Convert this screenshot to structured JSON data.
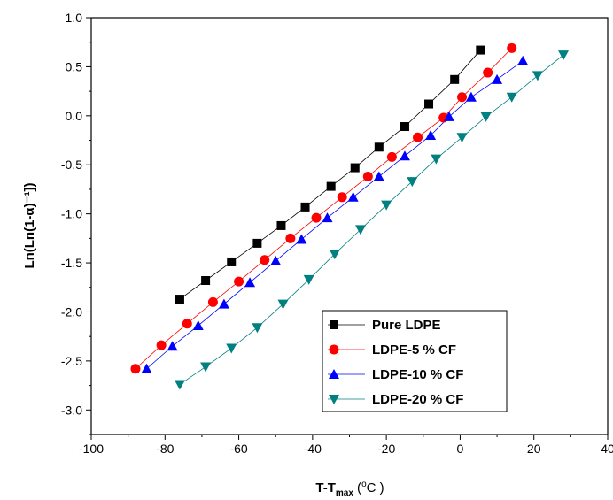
{
  "chart_data": {
    "type": "scatter",
    "xlabel": {
      "main": "T-T",
      "sub": "max",
      "unit_prefix": " (",
      "unit_deg": "o",
      "unit": "C )"
    },
    "ylabel": "Ln(Ln(1-α)⁻¹])",
    "xlim": [
      -100,
      40
    ],
    "ylim": [
      -3.25,
      1.0
    ],
    "xticks": [
      -100,
      -80,
      -60,
      -40,
      -20,
      0,
      20,
      40
    ],
    "yticks": [
      -3.0,
      -2.5,
      -2.0,
      -1.5,
      -1.0,
      -0.5,
      0.0,
      0.5,
      1.0
    ],
    "xtick_labels": [
      "-100",
      "-80",
      "-60",
      "-40",
      "-20",
      "0",
      "20",
      "40"
    ],
    "ytick_labels": [
      "-3.0",
      "-2.5",
      "-2.0",
      "-1.5",
      "-1.0",
      "-0.5",
      "0.0",
      "0.5",
      "1.0"
    ],
    "grid": false,
    "legend_position": "bottom-right",
    "series": [
      {
        "name": "Pure LDPE",
        "marker": "square",
        "color": "#000000",
        "line_color": "#000000",
        "x": [
          -76,
          -69,
          -62,
          -55,
          -48.5,
          -42,
          -35,
          -28.5,
          -22,
          -15,
          -8.5,
          -1.5,
          5.5
        ],
        "y": [
          -1.87,
          -1.68,
          -1.49,
          -1.3,
          -1.12,
          -0.93,
          -0.72,
          -0.53,
          -0.32,
          -0.11,
          0.12,
          0.37,
          0.67
        ]
      },
      {
        "name": "LDPE-5 % CF",
        "marker": "circle",
        "color": "#ff0000",
        "line_color": "#ff0000",
        "x": [
          -88,
          -81,
          -74,
          -67,
          -60,
          -53,
          -46,
          -39,
          -32,
          -25,
          -18.5,
          -11.5,
          -4.5,
          0.5,
          7.5,
          14
        ],
        "y": [
          -2.58,
          -2.34,
          -2.12,
          -1.9,
          -1.69,
          -1.47,
          -1.25,
          -1.04,
          -0.83,
          -0.62,
          -0.42,
          -0.22,
          -0.02,
          0.19,
          0.44,
          0.69
        ]
      },
      {
        "name": "LDPE-10 % CF",
        "marker": "triangle-up",
        "color": "#0000ff",
        "line_color": "#0000ff",
        "x": [
          -85,
          -78,
          -71,
          -64,
          -57,
          -50,
          -43,
          -36,
          -29,
          -22,
          -15,
          -8,
          -3,
          3,
          10,
          17
        ],
        "y": [
          -2.58,
          -2.35,
          -2.14,
          -1.92,
          -1.7,
          -1.48,
          -1.26,
          -1.04,
          -0.83,
          -0.62,
          -0.41,
          -0.2,
          -0.01,
          0.19,
          0.37,
          0.56
        ]
      },
      {
        "name": "LDPE-20 % CF",
        "marker": "triangle-down",
        "color": "#008080",
        "line_color": "#008080",
        "x": [
          -76,
          -69,
          -62,
          -55,
          -48,
          -41,
          -34,
          -27,
          -20,
          -13,
          -6.5,
          0.5,
          7,
          14,
          21,
          28
        ],
        "y": [
          -2.74,
          -2.56,
          -2.37,
          -2.16,
          -1.92,
          -1.67,
          -1.41,
          -1.16,
          -0.91,
          -0.67,
          -0.44,
          -0.22,
          -0.01,
          0.19,
          0.41,
          0.62
        ]
      }
    ]
  }
}
